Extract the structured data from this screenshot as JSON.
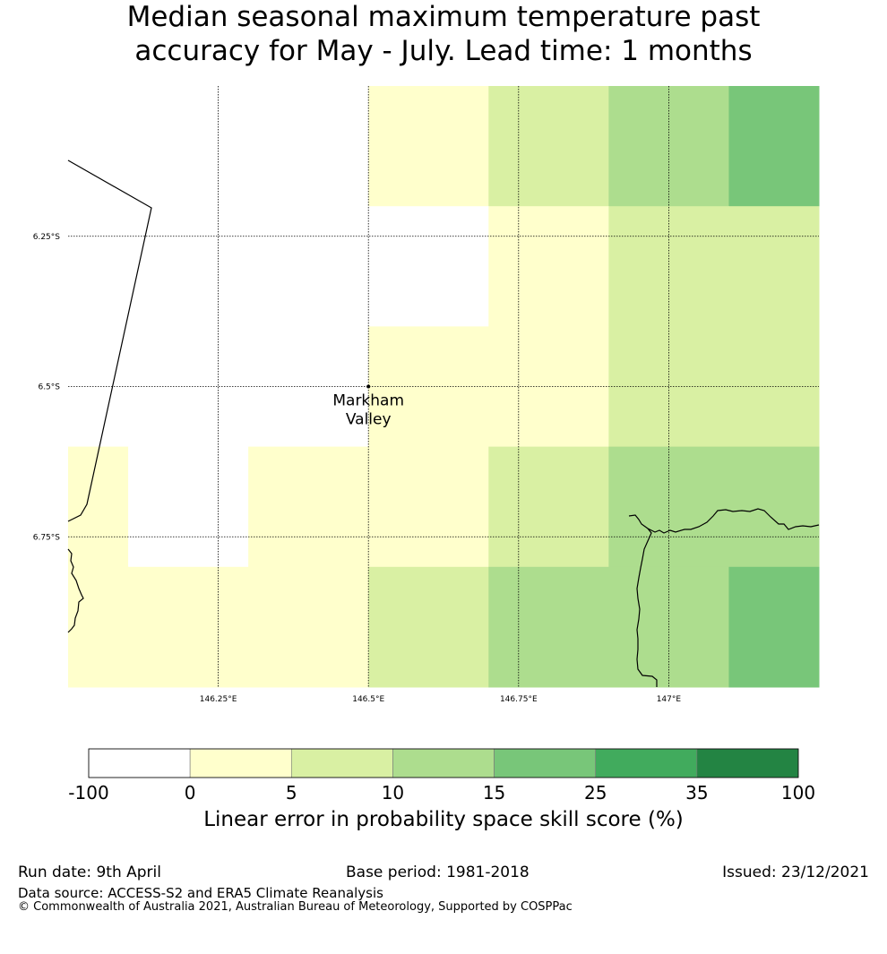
{
  "title": {
    "line1": "Median seasonal maximum temperature past",
    "line2": "accuracy for May - July. Lead time: 1 months"
  },
  "map": {
    "lon_ticks": [
      "146.25°E",
      "146.5°E",
      "146.75°E",
      "147°E"
    ],
    "lat_ticks": [
      "6.25°S",
      "6.5°S",
      "6.75°S"
    ],
    "place_name_line1": "Markham",
    "place_name_line2": "Valley",
    "extent": {
      "lon_min": 146.0,
      "lon_max": 147.25,
      "lat_min": -7.0,
      "lat_max": -6.0
    },
    "grid": {
      "lon_edges": [
        146.0,
        146.1,
        146.3,
        146.5,
        146.7,
        146.9,
        147.1,
        147.25
      ],
      "lat_edges": [
        -6.0,
        -6.2,
        -6.4,
        -6.6,
        -6.8,
        -7.0
      ],
      "categories": [
        [
          0,
          0,
          0,
          1,
          2,
          3,
          4
        ],
        [
          0,
          0,
          0,
          0,
          1,
          2,
          2
        ],
        [
          0,
          0,
          0,
          1,
          1,
          2,
          2
        ],
        [
          1,
          0,
          1,
          1,
          2,
          3,
          3
        ],
        [
          1,
          1,
          1,
          2,
          3,
          3,
          4
        ]
      ]
    },
    "gridline_color": "#000000",
    "coastline_color": "#000000"
  },
  "colorbar": {
    "labels": [
      "-100",
      "0",
      "5",
      "10",
      "15",
      "25",
      "35",
      "100"
    ],
    "colors": [
      "#ffffff",
      "#ffffcc",
      "#d9f0a3",
      "#addd8e",
      "#78c679",
      "#41ab5d",
      "#238443"
    ],
    "title": "Linear error in probability space skill score (%)"
  },
  "footer": {
    "run_date": "Run date: 9th April",
    "base_period": "Base period: 1981-2018",
    "issued": "Issued: 23/12/2021",
    "data_source": "Data source: ACCESS-S2 and ERA5 Climate Reanalysis",
    "copyright": "© Commonwealth of Australia 2021, Australian Bureau of Meteorology, Supported by COSPPac"
  }
}
